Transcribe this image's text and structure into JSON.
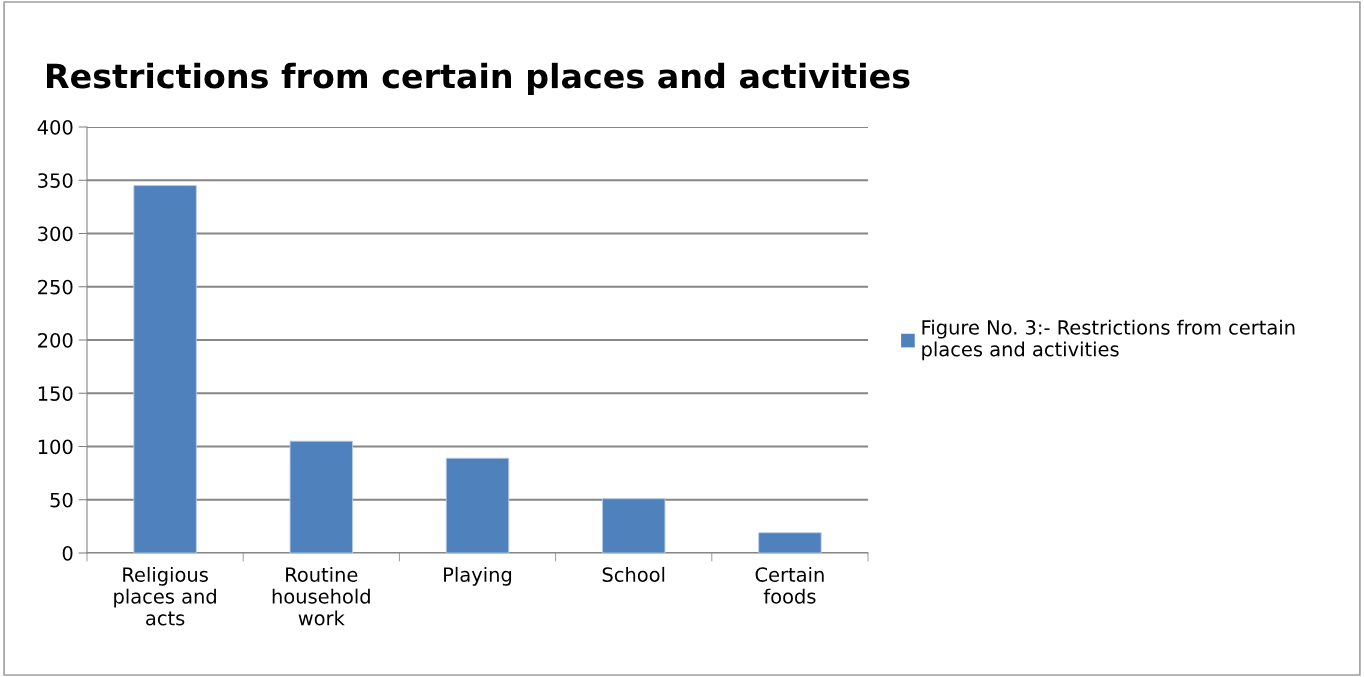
{
  "chart_data": {
    "type": "bar",
    "title": "Restrictions from certain places and activities",
    "categories": [
      "Religious places and acts",
      "Routine household work",
      "Playing",
      "School",
      "Certain foods"
    ],
    "series": [
      {
        "name": "Figure No. 3:- Restrictions from certain places and activities",
        "color": "#4f81bd",
        "values": [
          345,
          105,
          89,
          51,
          19
        ]
      }
    ],
    "ylim": [
      0,
      400
    ],
    "yticks": [
      0,
      50,
      100,
      150,
      200,
      250,
      300,
      350,
      400
    ],
    "grid": "y",
    "legend": "right"
  }
}
